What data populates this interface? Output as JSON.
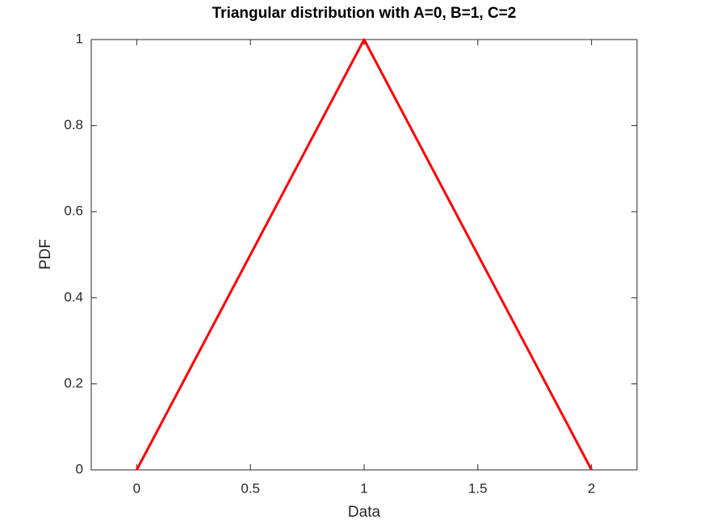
{
  "chart_data": {
    "type": "line",
    "title": "Triangular distribution with A=0, B=1, C=2",
    "x_label": "Data",
    "y_label": "PDF",
    "x": [
      0,
      1,
      2
    ],
    "values": [
      0,
      1,
      0
    ],
    "color": "#ff0000",
    "xlim": [
      -0.2,
      2.2
    ],
    "ylim": [
      0,
      1
    ],
    "xticks": [
      0,
      0.5,
      1,
      1.5,
      2
    ],
    "yticks": [
      0,
      0.2,
      0.4,
      0.6,
      0.8,
      1
    ],
    "grid": false
  }
}
